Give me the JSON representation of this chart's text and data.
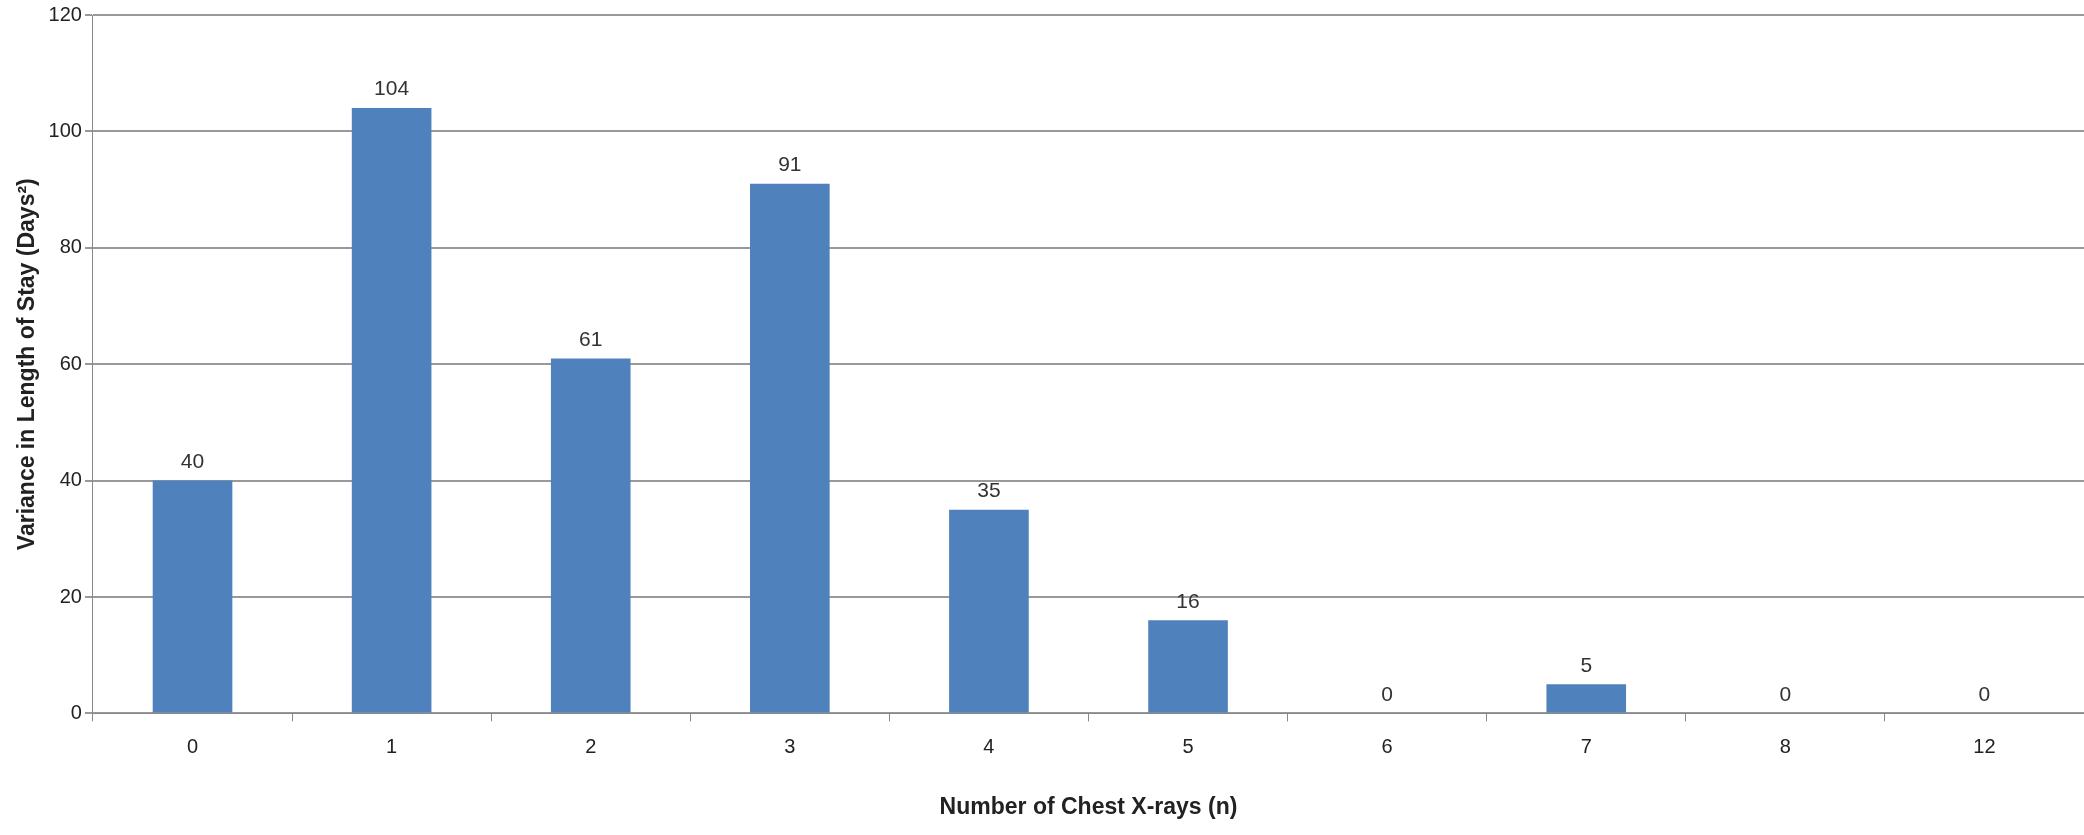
{
  "chart_data": {
    "type": "bar",
    "xlabel": "Number of Chest X-rays (n)",
    "ylabel": "Variance in Length of Stay (Days²)",
    "categories": [
      "0",
      "1",
      "2",
      "3",
      "4",
      "5",
      "6",
      "7",
      "8",
      "12"
    ],
    "values": [
      40,
      104,
      61,
      91,
      35,
      16,
      0,
      5,
      0,
      0
    ],
    "color": "#4f81bd",
    "ylim": [
      0,
      120
    ],
    "yticks": [
      0,
      20,
      40,
      60,
      80,
      100,
      120
    ],
    "grid": "y",
    "data_labels": true,
    "legend": false
  }
}
